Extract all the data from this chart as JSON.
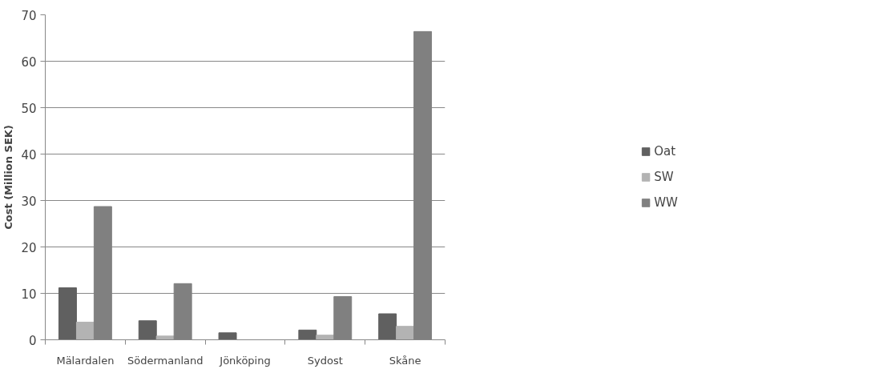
{
  "chart_data": {
    "type": "bar",
    "ylabel": "Cost (Million SEK)",
    "categories": [
      "Mälardalen",
      "Södermanland",
      "Jönköping",
      "Sydost",
      "Skåne"
    ],
    "series": [
      {
        "name": "Oat",
        "color": "#606060",
        "values": [
          11.2,
          4.1,
          1.5,
          2.1,
          5.6
        ]
      },
      {
        "name": "SW",
        "color": "#b3b3b3",
        "values": [
          3.8,
          0.8,
          null,
          1.0,
          2.9
        ]
      },
      {
        "name": "WW",
        "color": "#808080",
        "values": [
          28.7,
          12.1,
          null,
          9.3,
          66.4
        ]
      }
    ],
    "ylim": [
      0,
      70
    ],
    "yticks": [
      0,
      10,
      20,
      30,
      40,
      50,
      60,
      70
    ],
    "grid": "y",
    "legend": "right"
  }
}
